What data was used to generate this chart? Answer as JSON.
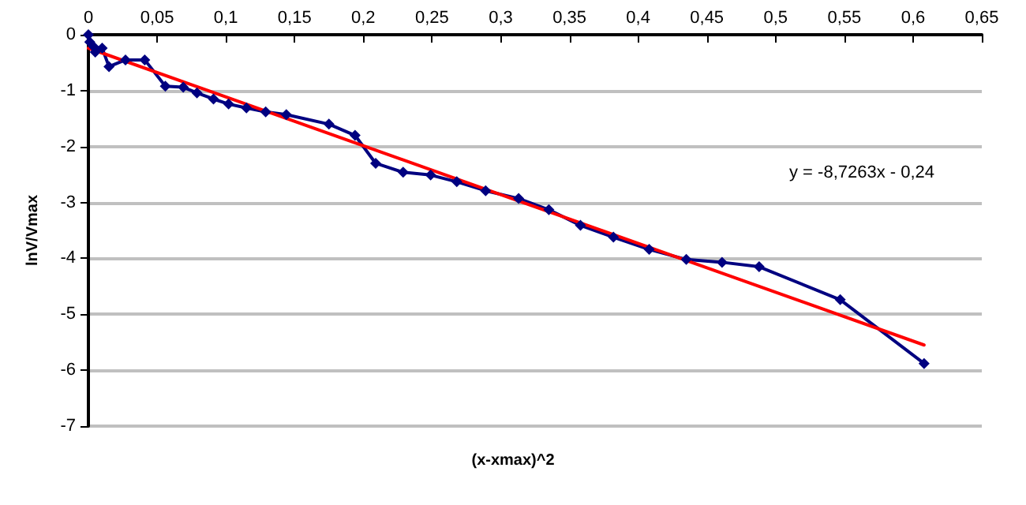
{
  "chart_data": {
    "type": "line",
    "xlabel": "(x-xmax)^2",
    "ylabel": "lnV/Vmax",
    "annotations": [
      "y = -8,7263x - 0,24"
    ],
    "series": [
      {
        "color": "#000080",
        "marker": "diamond",
        "x": [
          0,
          0.001,
          0.004,
          0.005,
          0.01,
          0.015,
          0.027,
          0.041,
          0.056,
          0.069,
          0.079,
          0.091,
          0.102,
          0.115,
          0.129,
          0.144,
          0.175,
          0.194,
          0.209,
          0.229,
          0.249,
          0.268,
          0.289,
          0.313,
          0.335,
          0.358,
          0.382,
          0.408,
          0.435,
          0.461,
          0.488,
          0.547,
          0.608
        ],
        "values": [
          0,
          -0.13,
          -0.22,
          -0.31,
          -0.24,
          -0.57,
          -0.45,
          -0.45,
          -0.92,
          -0.94,
          -1.04,
          -1.15,
          -1.24,
          -1.31,
          -1.38,
          -1.43,
          -1.6,
          -1.8,
          -2.3,
          -2.46,
          -2.51,
          -2.63,
          -2.79,
          -2.93,
          -3.13,
          -3.41,
          -3.62,
          -3.84,
          -4.02,
          -4.07,
          -4.15,
          -4.74,
          -5.88
        ]
      },
      {
        "type": "line",
        "color": "#ff0000",
        "marker": "none",
        "x": [
          0,
          0.608
        ],
        "values": [
          -0.24,
          -5.55
        ]
      }
    ],
    "xlim": [
      0,
      0.65
    ],
    "xticks": [
      0,
      {
        "value": 0.05,
        "label": "0,05"
      },
      {
        "value": 0.1,
        "label": "0,1"
      },
      {
        "value": 0.15,
        "label": "0,15"
      },
      {
        "value": 0.2,
        "label": "0,2"
      },
      {
        "value": 0.25,
        "label": "0,25"
      },
      {
        "value": 0.3,
        "label": "0,3"
      },
      {
        "value": 0.35,
        "label": "0,35"
      },
      {
        "value": 0.4,
        "label": "0,4"
      },
      {
        "value": 0.45,
        "label": "0,45"
      },
      {
        "value": 0.5,
        "label": "0,5"
      },
      {
        "value": 0.55,
        "label": "0,55"
      },
      {
        "value": 0.6,
        "label": "0,6"
      },
      {
        "value": 0.65,
        "label": "0,65"
      }
    ],
    "ylim": [
      -7,
      0
    ],
    "yticks": [
      0,
      -1,
      -2,
      -3,
      -4,
      -5,
      -6,
      -7
    ],
    "grid": "y"
  }
}
